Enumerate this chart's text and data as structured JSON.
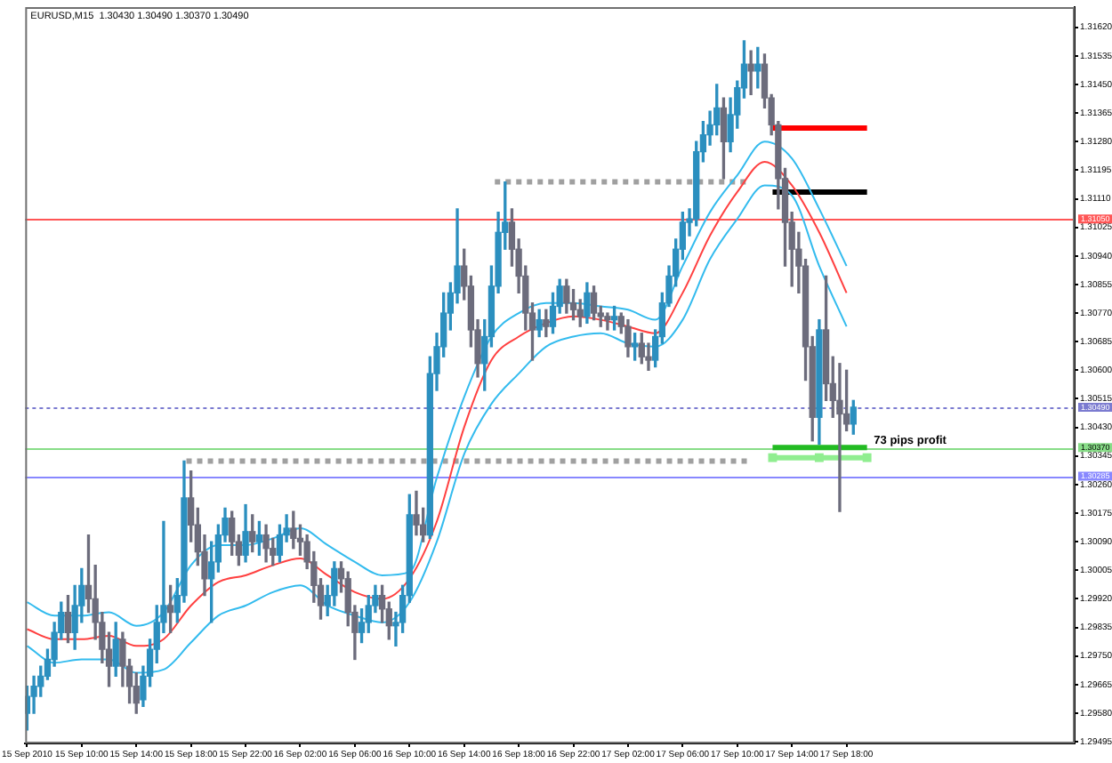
{
  "chart_data": {
    "type": "candlestick",
    "xlim": [
      "2010-09-15T05:52",
      "2010-09-18T10:42"
    ],
    "xticks": [
      {
        "value": "2010-09-15T06:00",
        "label": "15 Sep 2010"
      },
      {
        "value": "2010-09-15T10:00",
        "label": "15 Sep 10:00"
      },
      {
        "value": "2010-09-15T14:00",
        "label": "15 Sep 14:00"
      },
      {
        "value": "2010-09-15T18:00",
        "label": "15 Sep 18:00"
      },
      {
        "value": "2010-09-15T22:00",
        "label": "15 Sep 22:00"
      },
      {
        "value": "2010-09-16T02:00",
        "label": "16 Sep 02:00"
      },
      {
        "value": "2010-09-16T06:00",
        "label": "16 Sep 06:00"
      },
      {
        "value": "2010-09-16T10:00",
        "label": "16 Sep 10:00"
      },
      {
        "value": "2010-09-16T14:00",
        "label": "16 Sep 14:00"
      },
      {
        "value": "2010-09-16T18:00",
        "label": "16 Sep 18:00"
      },
      {
        "value": "2010-09-16T22:00",
        "label": "16 Sep 22:00"
      },
      {
        "value": "2010-09-17T02:00",
        "label": "17 Sep 02:00"
      },
      {
        "value": "2010-09-17T06:00",
        "label": "17 Sep 06:00"
      },
      {
        "value": "2010-09-17T10:00",
        "label": "17 Sep 10:00"
      },
      {
        "value": "2010-09-17T14:00",
        "label": "17 Sep 14:00"
      },
      {
        "value": "2010-09-17T18:00",
        "label": "17 Sep 18:00"
      }
    ],
    "ylim": [
      1.2949,
      1.3168
    ],
    "yticks": [
      {
        "value": 1.3162,
        "label": "1.31620"
      },
      {
        "value": 1.31535,
        "label": "1.31535"
      },
      {
        "value": 1.3145,
        "label": "1.31450"
      },
      {
        "value": 1.31365,
        "label": "1.31365"
      },
      {
        "value": 1.3128,
        "label": "1.31280"
      },
      {
        "value": 1.31195,
        "label": "1.31195"
      },
      {
        "value": 1.3111,
        "label": "1.31110"
      },
      {
        "value": 1.31025,
        "label": "1.31025"
      },
      {
        "value": 1.3094,
        "label": "1.30940"
      },
      {
        "value": 1.30855,
        "label": "1.30855"
      },
      {
        "value": 1.3077,
        "label": "1.30770"
      },
      {
        "value": 1.30685,
        "label": "1.30685"
      },
      {
        "value": 1.306,
        "label": "1.30600"
      },
      {
        "value": 1.30515,
        "label": "1.30515"
      },
      {
        "value": 1.3043,
        "label": "1.30430"
      },
      {
        "value": 1.30345,
        "label": "1.30345"
      },
      {
        "value": 1.3026,
        "label": "1.30260"
      },
      {
        "value": 1.30175,
        "label": "1.30175"
      },
      {
        "value": 1.3009,
        "label": "1.30090"
      },
      {
        "value": 1.30005,
        "label": "1.30005"
      },
      {
        "value": 1.2992,
        "label": "1.29920"
      },
      {
        "value": 1.29835,
        "label": "1.29835"
      },
      {
        "value": 1.2975,
        "label": "1.29750"
      },
      {
        "value": 1.29665,
        "label": "1.29665"
      },
      {
        "value": 1.2958,
        "label": "1.29580"
      },
      {
        "value": 1.29495,
        "label": "1.29495"
      }
    ],
    "x": [
      "2010-09-15T06:00",
      "2010-09-15T08:00",
      "2010-09-15T10:00",
      "2010-09-15T12:00",
      "2010-09-15T14:00",
      "2010-09-15T16:00",
      "2010-09-15T18:00",
      "2010-09-15T20:00",
      "2010-09-15T22:00",
      "2010-09-16T00:00",
      "2010-09-16T02:00",
      "2010-09-16T04:00",
      "2010-09-16T06:00",
      "2010-09-16T08:00",
      "2010-09-16T10:00",
      "2010-09-16T12:00",
      "2010-09-16T14:00",
      "2010-09-16T16:00",
      "2010-09-16T18:00",
      "2010-09-16T20:00",
      "2010-09-16T22:00",
      "2010-09-17T00:00",
      "2010-09-17T02:00",
      "2010-09-17T04:00",
      "2010-09-17T06:00",
      "2010-09-17T08:00",
      "2010-09-17T10:00",
      "2010-09-17T12:00",
      "2010-09-17T14:00",
      "2010-09-17T16:00",
      "2010-09-17T18:00"
    ],
    "series": [
      {
        "type": "line",
        "color": "#33bbee",
        "values": [
          1.2991,
          1.2987,
          1.2987,
          1.2988,
          1.2984,
          1.2988,
          1.3002,
          1.3008,
          1.3008,
          1.301,
          1.3013,
          1.3008,
          1.3003,
          1.2999,
          1.3,
          1.3028,
          1.3052,
          1.307,
          1.3077,
          1.308,
          1.308,
          1.3079,
          1.3078,
          1.3075,
          1.3091,
          1.3107,
          1.3118,
          1.3128,
          1.3123,
          1.3108,
          1.3091
        ]
      },
      {
        "type": "line",
        "color": "#ff4040",
        "values": [
          1.2983,
          1.298,
          1.298,
          1.2981,
          1.2978,
          1.298,
          1.299,
          1.2997,
          1.2999,
          1.3002,
          1.3004,
          1.2999,
          1.2994,
          1.2992,
          1.2998,
          1.3015,
          1.3043,
          1.3063,
          1.307,
          1.3074,
          1.3076,
          1.3075,
          1.3073,
          1.3071,
          1.3083,
          1.31,
          1.3113,
          1.3122,
          1.3115,
          1.3101,
          1.3083
        ]
      },
      {
        "type": "line",
        "color": "#33bbee",
        "values": [
          1.2978,
          1.2973,
          1.2974,
          1.2974,
          1.297,
          1.2971,
          1.2979,
          1.2987,
          1.299,
          1.2994,
          1.2996,
          1.299,
          1.2987,
          1.2985,
          1.2991,
          1.3009,
          1.3035,
          1.305,
          1.3059,
          1.3067,
          1.307,
          1.3071,
          1.3068,
          1.3067,
          1.3075,
          1.3093,
          1.3105,
          1.3115,
          1.3112,
          1.3091,
          1.3073
        ]
      },
      {
        "type": "line",
        "color": "#a0a0a0",
        "line_style": "dotted",
        "x": [
          "2010-09-16T16:15",
          "2010-09-17T10:50"
        ],
        "values": [
          1.3116,
          1.3116
        ]
      },
      {
        "type": "line",
        "color": "#a0a0a0",
        "line_style": "dotted",
        "x": [
          "2010-09-15T17:40",
          "2010-09-17T10:50"
        ],
        "values": [
          1.3033,
          1.3033
        ]
      },
      {
        "type": "line",
        "color": "#ff0000",
        "x": [
          "2010-09-17T12:35",
          "2010-09-17T19:30"
        ],
        "values": [
          1.3132,
          1.3132
        ]
      },
      {
        "type": "line",
        "color": "#000000",
        "x": [
          "2010-09-17T12:35",
          "2010-09-17T19:30"
        ],
        "values": [
          1.3113,
          1.3113
        ]
      },
      {
        "type": "line",
        "color": "#22bb22",
        "x": [
          "2010-09-17T12:35",
          "2010-09-17T19:30"
        ],
        "values": [
          1.3037,
          1.3037
        ]
      },
      {
        "type": "line",
        "color": "#90ee90",
        "marker": "square",
        "x": [
          "2010-09-17T12:35",
          "2010-09-17T16:00",
          "2010-09-17T19:30"
        ],
        "values": [
          1.3034,
          1.3034,
          1.3034
        ]
      },
      {
        "x": [
          "2010-09-15T06:00",
          "2010-09-15T06:30",
          "2010-09-15T07:00",
          "2010-09-15T07:30",
          "2010-09-15T08:00",
          "2010-09-15T08:30",
          "2010-09-15T09:00",
          "2010-09-15T09:30",
          "2010-09-15T10:00",
          "2010-09-15T10:30",
          "2010-09-15T11:00",
          "2010-09-15T11:30",
          "2010-09-15T12:00",
          "2010-09-15T12:30",
          "2010-09-15T13:00",
          "2010-09-15T13:30",
          "2010-09-15T14:00",
          "2010-09-15T14:30",
          "2010-09-15T15:00",
          "2010-09-15T15:30",
          "2010-09-15T16:00",
          "2010-09-15T16:30",
          "2010-09-15T17:00",
          "2010-09-15T17:30",
          "2010-09-15T18:00",
          "2010-09-15T18:30",
          "2010-09-15T19:00",
          "2010-09-15T19:30",
          "2010-09-15T20:00",
          "2010-09-15T20:30",
          "2010-09-15T21:00",
          "2010-09-15T21:30",
          "2010-09-15T22:00",
          "2010-09-15T22:30",
          "2010-09-15T23:00",
          "2010-09-15T23:30",
          "2010-09-16T00:00",
          "2010-09-16T00:30",
          "2010-09-16T01:00",
          "2010-09-16T01:30",
          "2010-09-16T02:00",
          "2010-09-16T02:30",
          "2010-09-16T03:00",
          "2010-09-16T03:30",
          "2010-09-16T04:00",
          "2010-09-16T04:30",
          "2010-09-16T05:00",
          "2010-09-16T05:30",
          "2010-09-16T06:00",
          "2010-09-16T06:30",
          "2010-09-16T07:00",
          "2010-09-16T07:30",
          "2010-09-16T08:00",
          "2010-09-16T08:30",
          "2010-09-16T09:00",
          "2010-09-16T09:30",
          "2010-09-16T10:00",
          "2010-09-16T10:30",
          "2010-09-16T11:00",
          "2010-09-16T11:30",
          "2010-09-16T12:00",
          "2010-09-16T12:30",
          "2010-09-16T13:00",
          "2010-09-16T13:30",
          "2010-09-16T14:00",
          "2010-09-16T14:30",
          "2010-09-16T15:00",
          "2010-09-16T15:30",
          "2010-09-16T16:00",
          "2010-09-16T16:30",
          "2010-09-16T17:00",
          "2010-09-16T17:30",
          "2010-09-16T18:00",
          "2010-09-16T18:30",
          "2010-09-16T19:00",
          "2010-09-16T19:30",
          "2010-09-16T20:00",
          "2010-09-16T20:30",
          "2010-09-16T21:00",
          "2010-09-16T21:30",
          "2010-09-16T22:00",
          "2010-09-16T22:30",
          "2010-09-16T23:00",
          "2010-09-16T23:30",
          "2010-09-17T00:00",
          "2010-09-17T00:30",
          "2010-09-17T01:00",
          "2010-09-17T01:30",
          "2010-09-17T02:00",
          "2010-09-17T02:30",
          "2010-09-17T03:00",
          "2010-09-17T03:30",
          "2010-09-17T04:00",
          "2010-09-17T04:30",
          "2010-09-17T05:00",
          "2010-09-17T05:30",
          "2010-09-17T06:00",
          "2010-09-17T06:30",
          "2010-09-17T07:00",
          "2010-09-17T07:30",
          "2010-09-17T08:00",
          "2010-09-17T08:30",
          "2010-09-17T09:00",
          "2010-09-17T09:30",
          "2010-09-17T10:00",
          "2010-09-17T10:30",
          "2010-09-17T11:00",
          "2010-09-17T11:30",
          "2010-09-17T12:00",
          "2010-09-17T12:30",
          "2010-09-17T13:00",
          "2010-09-17T13:30",
          "2010-09-17T14:00",
          "2010-09-17T14:30",
          "2010-09-17T15:00",
          "2010-09-17T15:30",
          "2010-09-17T16:00",
          "2010-09-17T16:30",
          "2010-09-17T17:00",
          "2010-09-17T17:30",
          "2010-09-17T18:00",
          "2010-09-17T18:30"
        ],
        "ohlc": [
          [
            1.2958,
            1.2966,
            1.2953,
            1.2963
          ],
          [
            1.2963,
            1.2969,
            1.2958,
            1.2966
          ],
          [
            1.2966,
            1.2972,
            1.2963,
            1.2969
          ],
          [
            1.2969,
            1.2977,
            1.2968,
            1.2974
          ],
          [
            1.2974,
            1.2985,
            1.2972,
            1.2982
          ],
          [
            1.2982,
            1.2991,
            1.298,
            1.2988
          ],
          [
            1.2988,
            1.2993,
            1.2979,
            1.2982
          ],
          [
            1.2982,
            1.2996,
            1.2977,
            1.299
          ],
          [
            1.299,
            1.3001,
            1.2985,
            1.2996
          ],
          [
            1.2996,
            1.3011,
            1.2988,
            1.2992
          ],
          [
            1.2992,
            1.3002,
            1.298,
            1.2985
          ],
          [
            1.2985,
            1.2988,
            1.2973,
            1.2977
          ],
          [
            1.2977,
            1.2982,
            1.2966,
            1.2972
          ],
          [
            1.2972,
            1.2985,
            1.2969,
            1.298
          ],
          [
            1.298,
            1.2982,
            1.2966,
            1.2972
          ],
          [
            1.2972,
            1.2974,
            1.2961,
            1.2966
          ],
          [
            1.2966,
            1.297,
            1.2958,
            1.2961
          ],
          [
            1.2962,
            1.2972,
            1.296,
            1.2969
          ],
          [
            1.2969,
            1.298,
            1.2966,
            1.2977
          ],
          [
            1.2977,
            1.299,
            1.2973,
            1.2985
          ],
          [
            1.2985,
            1.3015,
            1.2982,
            1.299
          ],
          [
            1.299,
            1.2996,
            1.2982,
            1.2988
          ],
          [
            1.2988,
            1.2998,
            1.2985,
            1.2993
          ],
          [
            1.2993,
            1.3033,
            1.2991,
            1.3022
          ],
          [
            1.3022,
            1.303,
            1.3009,
            1.3014
          ],
          [
            1.3014,
            1.3019,
            1.3002,
            1.3006
          ],
          [
            1.3006,
            1.3011,
            1.2993,
            1.2998
          ],
          [
            1.2998,
            1.3009,
            1.2985,
            1.3003
          ],
          [
            1.3003,
            1.3014,
            1.3,
            1.3011
          ],
          [
            1.3011,
            1.3019,
            1.3009,
            1.3016
          ],
          [
            1.3016,
            1.3018,
            1.3005,
            1.3009
          ],
          [
            1.3009,
            1.3011,
            1.3002,
            1.3005
          ],
          [
            1.3005,
            1.302,
            1.3003,
            1.3012
          ],
          [
            1.3012,
            1.3017,
            1.3006,
            1.3009
          ],
          [
            1.3009,
            1.3015,
            1.3005,
            1.3011
          ],
          [
            1.3011,
            1.3014,
            1.3003,
            1.3007
          ],
          [
            1.3007,
            1.301,
            1.3002,
            1.3005
          ],
          [
            1.3005,
            1.3014,
            1.3003,
            1.3011
          ],
          [
            1.3011,
            1.3017,
            1.3009,
            1.3013
          ],
          [
            1.3013,
            1.3018,
            1.3007,
            1.301
          ],
          [
            1.301,
            1.3014,
            1.3005,
            1.3009
          ],
          [
            1.3009,
            1.3011,
            1.3001,
            1.3003
          ],
          [
            1.3003,
            1.3006,
            1.2991,
            1.2996
          ],
          [
            1.2996,
            1.2998,
            1.2986,
            1.299
          ],
          [
            1.299,
            1.2996,
            1.2987,
            1.2993
          ],
          [
            1.2993,
            1.3003,
            1.299,
            1.3001
          ],
          [
            1.3001,
            1.3003,
            1.2994,
            1.2998
          ],
          [
            1.2998,
            1.3,
            1.2984,
            1.2988
          ],
          [
            1.2988,
            1.299,
            1.2974,
            1.2982
          ],
          [
            1.2982,
            1.2989,
            1.2979,
            1.2985
          ],
          [
            1.2985,
            1.2993,
            1.2982,
            1.299
          ],
          [
            1.299,
            1.2996,
            1.2988,
            1.2993
          ],
          [
            1.2993,
            1.2996,
            1.2985,
            1.2989
          ],
          [
            1.2989,
            1.2991,
            1.298,
            1.2984
          ],
          [
            1.2984,
            1.2988,
            1.2978,
            1.2985
          ],
          [
            1.2985,
            1.2996,
            1.2982,
            1.2993
          ],
          [
            1.2993,
            1.3023,
            1.2991,
            1.3017
          ],
          [
            1.3017,
            1.3024,
            1.3011,
            1.3014
          ],
          [
            1.3014,
            1.3019,
            1.3009,
            1.3011
          ],
          [
            1.3011,
            1.3064,
            1.301,
            1.3059
          ],
          [
            1.3059,
            1.3071,
            1.3054,
            1.3067
          ],
          [
            1.3067,
            1.3083,
            1.3064,
            1.3077
          ],
          [
            1.3077,
            1.3086,
            1.3072,
            1.3083
          ],
          [
            1.3083,
            1.3108,
            1.308,
            1.3091
          ],
          [
            1.3091,
            1.3096,
            1.3081,
            1.3085
          ],
          [
            1.3085,
            1.3088,
            1.3067,
            1.3072
          ],
          [
            1.3072,
            1.3075,
            1.3058,
            1.3062
          ],
          [
            1.3062,
            1.3075,
            1.3054,
            1.307
          ],
          [
            1.307,
            1.3091,
            1.3067,
            1.3085
          ],
          [
            1.3085,
            1.3107,
            1.3083,
            1.3101
          ],
          [
            1.3101,
            1.3116,
            1.3096,
            1.3104
          ],
          [
            1.3104,
            1.3108,
            1.3091,
            1.3096
          ],
          [
            1.3096,
            1.3099,
            1.3083,
            1.3088
          ],
          [
            1.3088,
            1.3091,
            1.3072,
            1.3077
          ],
          [
            1.3077,
            1.308,
            1.3063,
            1.3072
          ],
          [
            1.3072,
            1.3078,
            1.307,
            1.3075
          ],
          [
            1.3075,
            1.3078,
            1.307,
            1.3073
          ],
          [
            1.3073,
            1.3083,
            1.3071,
            1.3079
          ],
          [
            1.3079,
            1.3087,
            1.3077,
            1.3085
          ],
          [
            1.3085,
            1.3087,
            1.3077,
            1.308
          ],
          [
            1.308,
            1.3084,
            1.3075,
            1.3078
          ],
          [
            1.3078,
            1.3081,
            1.3073,
            1.3076
          ],
          [
            1.3076,
            1.3086,
            1.3074,
            1.3083
          ],
          [
            1.3083,
            1.3085,
            1.3075,
            1.3077
          ],
          [
            1.3077,
            1.3079,
            1.3073,
            1.3076
          ],
          [
            1.3076,
            1.3077,
            1.3072,
            1.3075
          ],
          [
            1.3075,
            1.3079,
            1.3072,
            1.3076
          ],
          [
            1.3076,
            1.3077,
            1.3071,
            1.3073
          ],
          [
            1.3073,
            1.3075,
            1.3064,
            1.3067
          ],
          [
            1.3067,
            1.3071,
            1.3063,
            1.3068
          ],
          [
            1.3068,
            1.3071,
            1.3062,
            1.3064
          ],
          [
            1.3064,
            1.3068,
            1.306,
            1.3063
          ],
          [
            1.3063,
            1.3072,
            1.3061,
            1.307
          ],
          [
            1.307,
            1.3083,
            1.3068,
            1.308
          ],
          [
            1.308,
            1.3091,
            1.3079,
            1.3088
          ],
          [
            1.3088,
            1.3099,
            1.3085,
            1.3096
          ],
          [
            1.3096,
            1.3107,
            1.3093,
            1.3104
          ],
          [
            1.3104,
            1.3108,
            1.31,
            1.3105
          ],
          [
            1.3105,
            1.3128,
            1.3103,
            1.3125
          ],
          [
            1.3125,
            1.3134,
            1.3122,
            1.313
          ],
          [
            1.313,
            1.3137,
            1.3127,
            1.3133
          ],
          [
            1.3133,
            1.3145,
            1.313,
            1.3138
          ],
          [
            1.3138,
            1.3141,
            1.3117,
            1.3128
          ],
          [
            1.3128,
            1.3141,
            1.3125,
            1.3136
          ],
          [
            1.3136,
            1.3146,
            1.3132,
            1.3144
          ],
          [
            1.3144,
            1.3158,
            1.3141,
            1.3151
          ],
          [
            1.3151,
            1.3155,
            1.3142,
            1.3149
          ],
          [
            1.3149,
            1.3156,
            1.3144,
            1.3151
          ],
          [
            1.3151,
            1.3154,
            1.3138,
            1.3141
          ],
          [
            1.3141,
            1.3142,
            1.313,
            1.3133
          ],
          [
            1.3133,
            1.3134,
            1.3108,
            1.3117
          ],
          [
            1.3117,
            1.312,
            1.3091,
            1.3104
          ],
          [
            1.3104,
            1.3107,
            1.3085,
            1.3096
          ],
          [
            1.3096,
            1.3101,
            1.3083,
            1.3091
          ],
          [
            1.3091,
            1.3093,
            1.3057,
            1.3067
          ],
          [
            1.3067,
            1.307,
            1.3039,
            1.3046
          ],
          [
            1.3046,
            1.3075,
            1.3038,
            1.3072
          ],
          [
            1.3072,
            1.3088,
            1.3051,
            1.3056
          ],
          [
            1.3056,
            1.3064,
            1.3046,
            1.3051
          ],
          [
            1.3051,
            1.3062,
            1.3018,
            1.3047
          ],
          [
            1.3047,
            1.306,
            1.3042,
            1.3044
          ],
          [
            1.3044,
            1.3051,
            1.3041,
            1.3049
          ]
        ],
        "colors": [
          "#2b8fbf",
          "#2b8fbf",
          "#2b8fbf",
          "#2b8fbf",
          "#2b8fbf",
          "#2b8fbf",
          "#6c6c7c",
          "#2b8fbf",
          "#2b8fbf",
          "#6c6c7c",
          "#6c6c7c",
          "#6c6c7c",
          "#6c6c7c",
          "#2b8fbf",
          "#6c6c7c",
          "#6c6c7c",
          "#6c6c7c",
          "#2b8fbf",
          "#2b8fbf",
          "#2b8fbf",
          "#2b8fbf",
          "#6c6c7c",
          "#2b8fbf",
          "#2b8fbf",
          "#6c6c7c",
          "#6c6c7c",
          "#6c6c7c",
          "#2b8fbf",
          "#2b8fbf",
          "#2b8fbf",
          "#6c6c7c",
          "#6c6c7c",
          "#2b8fbf",
          "#6c6c7c",
          "#2b8fbf",
          "#6c6c7c",
          "#6c6c7c",
          "#2b8fbf",
          "#2b8fbf",
          "#6c6c7c",
          "#6c6c7c",
          "#6c6c7c",
          "#6c6c7c",
          "#6c6c7c",
          "#2b8fbf",
          "#2b8fbf",
          "#6c6c7c",
          "#6c6c7c",
          "#6c6c7c",
          "#2b8fbf",
          "#2b8fbf",
          "#2b8fbf",
          "#6c6c7c",
          "#6c6c7c",
          "#2b8fbf",
          "#2b8fbf",
          "#2b8fbf",
          "#6c6c7c",
          "#6c6c7c",
          "#2b8fbf",
          "#2b8fbf",
          "#2b8fbf",
          "#2b8fbf",
          "#2b8fbf",
          "#6c6c7c",
          "#6c6c7c",
          "#6c6c7c",
          "#2b8fbf",
          "#2b8fbf",
          "#2b8fbf",
          "#2b8fbf",
          "#6c6c7c",
          "#6c6c7c",
          "#6c6c7c",
          "#6c6c7c",
          "#2b8fbf",
          "#6c6c7c",
          "#2b8fbf",
          "#2b8fbf",
          "#6c6c7c",
          "#6c6c7c",
          "#6c6c7c",
          "#2b8fbf",
          "#6c6c7c",
          "#6c6c7c",
          "#6c6c7c",
          "#2b8fbf",
          "#6c6c7c",
          "#6c6c7c",
          "#2b8fbf",
          "#6c6c7c",
          "#6c6c7c",
          "#2b8fbf",
          "#2b8fbf",
          "#2b8fbf",
          "#2b8fbf",
          "#2b8fbf",
          "#2b8fbf",
          "#2b8fbf",
          "#2b8fbf",
          "#2b8fbf",
          "#2b8fbf",
          "#6c6c7c",
          "#2b8fbf",
          "#2b8fbf",
          "#2b8fbf",
          "#6c6c7c",
          "#2b8fbf",
          "#6c6c7c",
          "#6c6c7c",
          "#6c6c7c",
          "#6c6c7c",
          "#6c6c7c",
          "#6c6c7c",
          "#6c6c7c",
          "#6c6c7c",
          "#2b8fbf",
          "#6c6c7c",
          "#6c6c7c",
          "#6c6c7c",
          "#6c6c7c",
          "#2b8fbf"
        ]
      }
    ],
    "ref_lines": [
      {
        "axis": "y",
        "value": 1.3105,
        "label": "1.31050",
        "color": "#ff5555"
      },
      {
        "axis": "y",
        "value": 1.3049,
        "label": "1.30490",
        "color": "#7b7bd0",
        "line_style": "dotted"
      },
      {
        "axis": "y",
        "value": 1.3037,
        "label": "1.30370",
        "color": "#88dd88"
      },
      {
        "axis": "y",
        "value": 1.30285,
        "label": "1.30285",
        "color": "#8888ff"
      }
    ],
    "annotations": [
      "EURUSD,M15  1.30430 1.30490 1.30370 1.30490",
      {
        "text": "73 pips profit",
        "x": "2010-09-17T20:00",
        "y": 1.3039
      }
    ]
  }
}
